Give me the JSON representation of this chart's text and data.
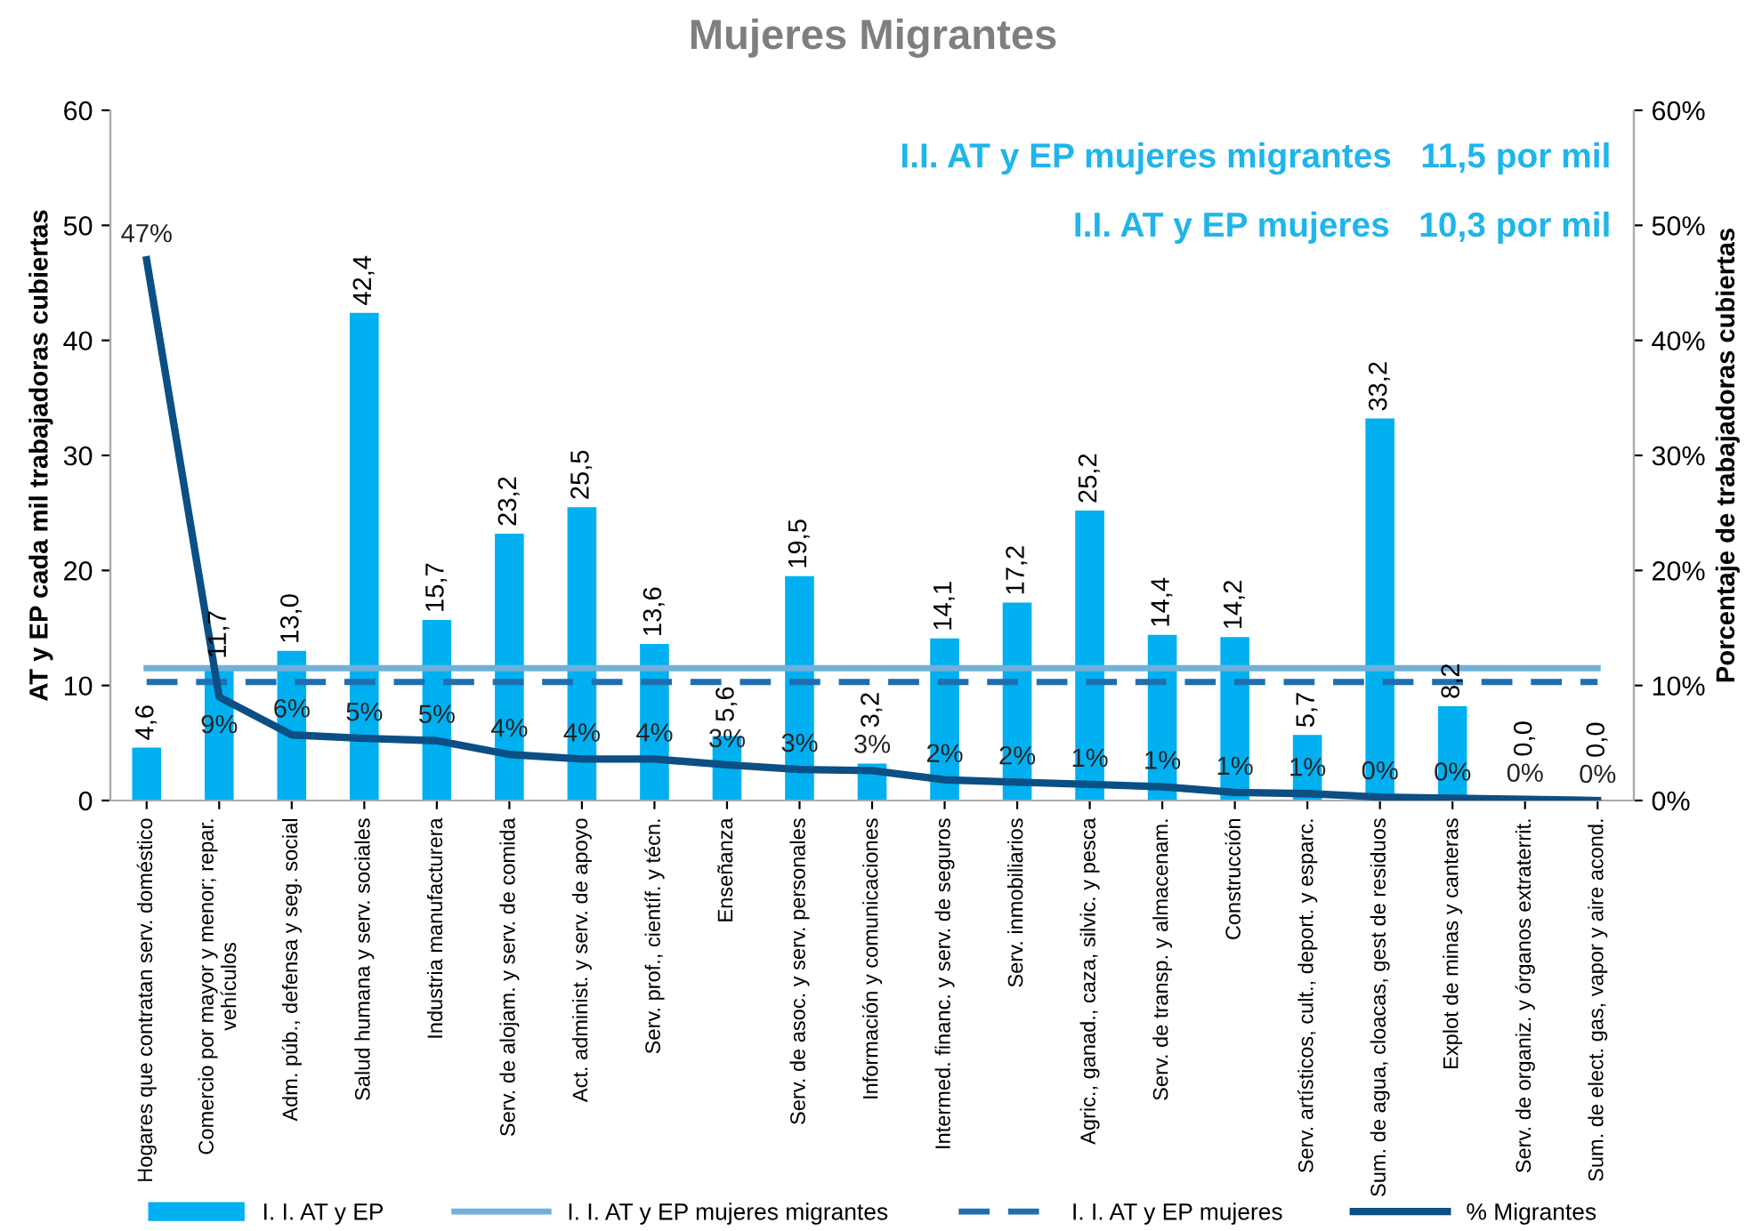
{
  "chart_data": {
    "type": "bar",
    "title": "Mujeres Migrantes",
    "ylabel": "AT y EP cada mil trabajadoras cubiertas",
    "y2label": "Porcentaje de trabajadoras cubiertas",
    "categories": [
      "Hogares que contratan serv. doméstico",
      "Comercio por mayor y menor; repar. vehículos",
      "Adm. púb., defensa y seg. social",
      "Salud humana y serv. sociales",
      "Industria manufacturera",
      "Serv. de alojam. y serv. de comida",
      "Act. administ. y serv. de apoyo",
      "Serv. prof., científ. y técn.",
      "Enseñanza",
      "Serv. de asoc. y serv. personales",
      "Información y comunicaciones",
      "Intermed. financ. y serv. de seguros",
      "Serv. inmobiliarios",
      "Agric., ganad., caza, silvic. y pesca",
      "Serv. de transp. y almacenam.",
      "Construcción",
      "Serv. artísticos, cult., deport. y esparc.",
      "Sum. de agua, cloacas, gest de residuos",
      "Explot de minas y canteras",
      "Serv. de organiz. y órganos extraterrit.",
      "Sum. de elect. gas, vapor y aire acond."
    ],
    "series": [
      {
        "name": "I. I. AT y EP",
        "color": "#00b0f0",
        "values": [
          4.6,
          11.7,
          13.0,
          42.4,
          15.7,
          23.2,
          25.5,
          13.6,
          5.6,
          19.5,
          3.2,
          14.1,
          17.2,
          25.2,
          14.4,
          14.2,
          5.7,
          33.2,
          8.2,
          0.0,
          0.0
        ],
        "value_labels": [
          "4,6",
          "11,7",
          "13,0",
          "42,4",
          "15,7",
          "23,2",
          "25,5",
          "13,6",
          "5,6",
          "19,5",
          "3,2",
          "14,1",
          "17,2",
          "25,2",
          "14,4",
          "14,2",
          "5,7",
          "33,2",
          "8,2",
          "0,0",
          "0,0"
        ]
      },
      {
        "name": "I. I. AT y EP mujeres migrantes",
        "type": "line",
        "color": "#6fb1d9",
        "line_style": "solid",
        "values": [
          11.5,
          11.5,
          11.5,
          11.5,
          11.5,
          11.5,
          11.5,
          11.5,
          11.5,
          11.5,
          11.5,
          11.5,
          11.5,
          11.5,
          11.5,
          11.5,
          11.5,
          11.5,
          11.5,
          11.5,
          11.5
        ]
      },
      {
        "name": "I. I. AT y EP mujeres",
        "type": "line",
        "color": "#1f6fb0",
        "line_style": "dashed",
        "values": [
          10.3,
          10.3,
          10.3,
          10.3,
          10.3,
          10.3,
          10.3,
          10.3,
          10.3,
          10.3,
          10.3,
          10.3,
          10.3,
          10.3,
          10.3,
          10.3,
          10.3,
          10.3,
          10.3,
          10.3,
          10.3
        ]
      },
      {
        "name": "% Migrantes",
        "type": "line",
        "axis": "y2",
        "color": "#0b4f84",
        "line_style": "solid",
        "values": [
          47,
          9.0,
          5.7,
          5.4,
          5.2,
          4.0,
          3.6,
          3.6,
          3.1,
          2.7,
          2.6,
          1.8,
          1.6,
          1.4,
          1.2,
          0.7,
          0.6,
          0.3,
          0.2,
          0.1,
          0.0
        ],
        "value_labels": [
          "47%",
          "9%",
          "6%",
          "5%",
          "5%",
          "4%",
          "4%",
          "4%",
          "3%",
          "3%",
          "3%",
          "2%",
          "2%",
          "1%",
          "1%",
          "1%",
          "1%",
          "0%",
          "0%",
          "0%",
          "0%"
        ]
      }
    ],
    "ylim": [
      0,
      60
    ],
    "yticks": [
      0,
      10,
      20,
      30,
      40,
      50,
      60
    ],
    "y2lim": [
      0,
      60
    ],
    "y2ticks": [
      {
        "value": 0,
        "label": "0%"
      },
      {
        "value": 10,
        "label": "10%"
      },
      {
        "value": 20,
        "label": "20%"
      },
      {
        "value": 30,
        "label": "30%"
      },
      {
        "value": 40,
        "label": "40%"
      },
      {
        "value": 50,
        "label": "50%"
      },
      {
        "value": 60,
        "label": "60%"
      }
    ],
    "annotations": [
      "I.I. AT y EP mujeres migrantes   11,5 por mil",
      "I.I. AT y EP mujeres   10,3 por mil"
    ],
    "legend": "bottom",
    "grid": false
  }
}
